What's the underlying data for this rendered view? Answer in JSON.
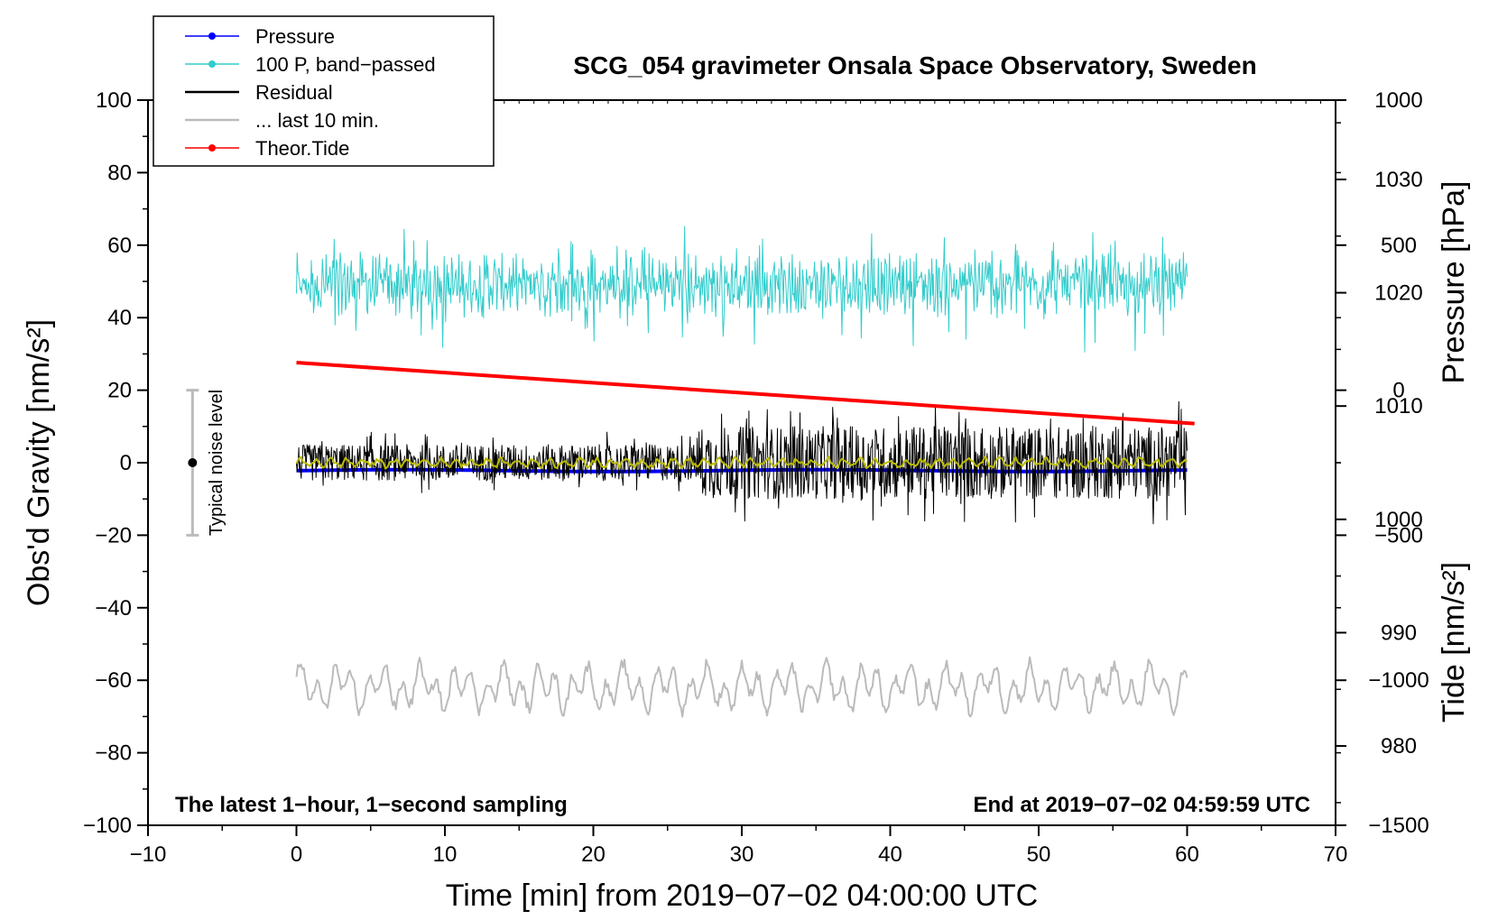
{
  "chart_data": {
    "type": "line",
    "title": "SCG_054 gravimeter Onsala Space Observatory, Sweden",
    "xlabel": "Time [min] from 2019−07−02 04:00:00 UTC",
    "ylabel_left": "Obs'd Gravity [nm/s²]",
    "ylabel_right_top": "Pressure [hPa]",
    "ylabel_right_bottom": "Tide [nm/s²]",
    "xlim": [
      -10,
      70
    ],
    "ylim": [
      -100,
      100
    ],
    "pressure_axis_range": [
      973,
      1037
    ],
    "tide_axis_range": [
      -1500,
      1000
    ],
    "x_ticks": [
      -10,
      0,
      10,
      20,
      30,
      40,
      50,
      60,
      70
    ],
    "x_tick_labels": [
      "−10",
      "0",
      "10",
      "20",
      "30",
      "40",
      "50",
      "60",
      "70"
    ],
    "y_ticks": [
      -100,
      -80,
      -60,
      -40,
      -20,
      0,
      20,
      40,
      60,
      80,
      100
    ],
    "y_tick_labels": [
      "−100",
      "−80",
      "−60",
      "−40",
      "−20",
      "0",
      "20",
      "40",
      "60",
      "80",
      "100"
    ],
    "pressure_ticks": [
      980,
      990,
      1000,
      1010,
      1020,
      1030
    ],
    "pressure_tick_labels": [
      "980",
      "990",
      "1000",
      "1010",
      "1020",
      "1030"
    ],
    "tide_ticks": [
      -1500,
      -1000,
      -500,
      0,
      500,
      1000
    ],
    "tide_tick_labels": [
      "−1500",
      "−1000",
      "−500",
      "0",
      "500",
      "1000"
    ],
    "annotations": {
      "bottom_left": "The latest 1−hour, 1−second sampling",
      "bottom_right": "End at 2019−07−02 04:59:59 UTC",
      "noise_label": "Typical noise level",
      "noise_bar": {
        "x": -7,
        "center": 0,
        "low": -20,
        "high": 20
      }
    },
    "legend": {
      "placement": "top-left, outside plot area",
      "entries": [
        {
          "label": "Pressure",
          "color": "#0000ff",
          "marker": true
        },
        {
          "label": "100 P, band−passed",
          "color": "#33cccc",
          "marker": true
        },
        {
          "label": "Residual",
          "color": "#000000",
          "marker": false
        },
        {
          "label": "... last 10 min.",
          "color": "#bbbbbb",
          "marker": false
        },
        {
          "label": "Theor.Tide",
          "color": "#ff0000",
          "marker": true
        }
      ]
    },
    "series": [
      {
        "name": "Pressure",
        "color": "#0000ff",
        "axis": "pressure_hPa",
        "x_range": [
          0,
          60
        ],
        "value_start": 1004.3,
        "value_end": 1004.3,
        "note": "flat near 1004.3 hPa"
      },
      {
        "name": "100 P, band−passed",
        "color": "#33cccc",
        "axis": "gravity",
        "x_range": [
          0,
          60
        ],
        "center": 49,
        "min": 28,
        "max": 70,
        "note": "high-frequency oscillation"
      },
      {
        "name": "Residual",
        "color": "#000000",
        "axis": "gravity",
        "x_range": [
          0,
          60
        ],
        "center": 0,
        "amplitude_0_27min": 5,
        "amplitude_27_60min": 10,
        "max": 17,
        "min": -21
      },
      {
        "name": "Residual smoothed",
        "color": "#bbbb00",
        "axis": "gravity",
        "x_range": [
          0,
          60
        ],
        "center": 0,
        "amplitude": 1.5
      },
      {
        "name": "... last 10 min.",
        "color": "#bbbbbb",
        "axis": "gravity",
        "x_range": [
          0,
          60
        ],
        "center": -62,
        "min": -77,
        "max": -49
      },
      {
        "name": "Theor.Tide",
        "color": "#ff0000",
        "axis": "tide_nms2",
        "x_range": [
          0,
          60.5
        ],
        "value_start": 95,
        "value_end": -115
      }
    ]
  }
}
